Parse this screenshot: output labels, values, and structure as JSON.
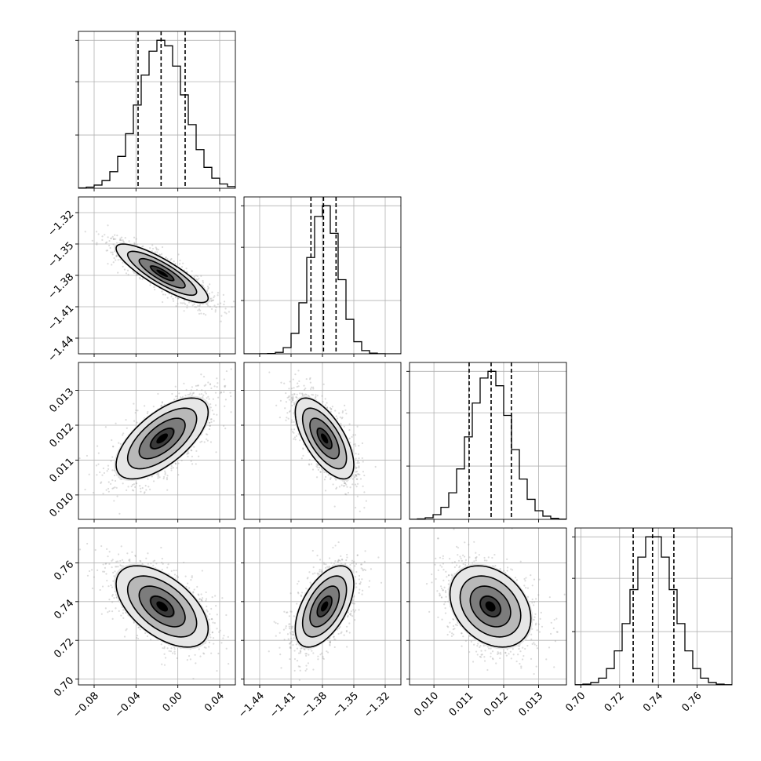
{
  "chart_data": {
    "type": "scatter",
    "title": "",
    "plot_style": "corner",
    "grid": true,
    "levels": 3,
    "parameters": [
      {
        "mean": -0.015,
        "sd": 0.022,
        "range": [
          -0.095,
          0.055
        ],
        "q16": -0.038,
        "q50": -0.016,
        "q84": 0.007,
        "ticks": [
          -0.08,
          -0.04,
          0.0,
          0.04
        ],
        "tick_labels": [
          "−0.08",
          "−0.04",
          "0.00",
          "0.04"
        ]
      },
      {
        "mean": -1.378,
        "sd": 0.014,
        "range": [
          -1.455,
          -1.305
        ],
        "q16": -1.391,
        "q50": -1.379,
        "q84": -1.367,
        "ticks": [
          -1.44,
          -1.41,
          -1.38,
          -1.35,
          -1.32
        ],
        "tick_labels": [
          "−1.44",
          "−1.41",
          "−1.38",
          "−1.35",
          "−1.32"
        ]
      },
      {
        "mean": 0.01162,
        "sd": 0.00058,
        "range": [
          0.0093,
          0.0138
        ],
        "q16": 0.01101,
        "q50": 0.01164,
        "q84": 0.01222,
        "ticks": [
          0.01,
          0.011,
          0.012,
          0.013
        ],
        "tick_labels": [
          "0.010",
          "0.011",
          "0.012",
          "0.013"
        ]
      },
      {
        "mean": 0.7375,
        "sd": 0.0105,
        "range": [
          0.697,
          0.778
        ],
        "q16": 0.727,
        "q50": 0.737,
        "q84": 0.748,
        "ticks": [
          0.7,
          0.72,
          0.74,
          0.76
        ],
        "tick_labels": [
          "0.70",
          "0.72",
          "0.74",
          "0.76"
        ]
      }
    ],
    "correlations": [
      [
        1.0,
        -0.85,
        0.65,
        -0.55
      ],
      [
        -0.85,
        1.0,
        -0.65,
        0.55
      ],
      [
        0.65,
        -0.65,
        1.0,
        -0.3
      ],
      [
        -0.55,
        0.55,
        -0.3,
        1.0
      ]
    ]
  }
}
